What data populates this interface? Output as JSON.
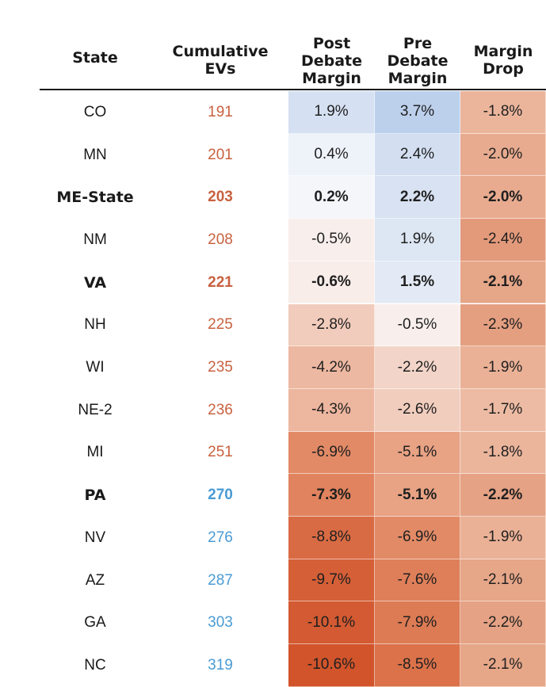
{
  "colors": {
    "ev_red": "#c8613f",
    "ev_blue": "#4a9bd4",
    "text": "#1a1a1a"
  },
  "headers": {
    "state": "State",
    "evs": "Cumulative\nEVs",
    "post": "Post\nDebate\nMargin",
    "pre": "Pre\nDebate\nMargin",
    "drop": "Margin\nDrop"
  },
  "rows": [
    {
      "state": "CO",
      "evs": "191",
      "post": "1.9%",
      "pre": "3.7%",
      "drop": "-1.8%",
      "bold": false,
      "ev_color": "red",
      "post_bg": "#d5e1f2",
      "pre_bg": "#bcd0ec",
      "drop_bg": "#ebb59c"
    },
    {
      "state": "MN",
      "evs": "201",
      "post": "0.4%",
      "pre": "2.4%",
      "drop": "-2.0%",
      "bold": false,
      "ev_color": "red",
      "post_bg": "#eef2f9",
      "pre_bg": "#d3dff1",
      "drop_bg": "#e8ab8f"
    },
    {
      "state": "ME-State",
      "evs": "203",
      "post": "0.2%",
      "pre": "2.2%",
      "drop": "-2.0%",
      "bold": true,
      "ev_color": "red",
      "post_bg": "#f4f6fa",
      "pre_bg": "#d8e2f2",
      "drop_bg": "#e8ab8f"
    },
    {
      "state": "NM",
      "evs": "208",
      "post": "-0.5%",
      "pre": "1.9%",
      "drop": "-2.4%",
      "bold": false,
      "ev_color": "red",
      "post_bg": "#f8efec",
      "pre_bg": "#dde6f3",
      "drop_bg": "#e39a7b"
    },
    {
      "state": "VA",
      "evs": "221",
      "post": "-0.6%",
      "pre": "1.5%",
      "drop": "-2.1%",
      "bold": true,
      "ev_color": "red",
      "post_bg": "#f8ede9",
      "pre_bg": "#e3eaf5",
      "drop_bg": "#e6a688"
    },
    {
      "state": "NH",
      "evs": "225",
      "post": "-2.8%",
      "pre": "-0.5%",
      "drop": "-2.3%",
      "bold": false,
      "ev_color": "red",
      "post_bg": "#f1cbbb",
      "pre_bg": "#f8efec",
      "drop_bg": "#e49f80"
    },
    {
      "state": "WI",
      "evs": "235",
      "post": "-4.2%",
      "pre": "-2.2%",
      "drop": "-1.9%",
      "bold": false,
      "ev_color": "red",
      "post_bg": "#edb8a1",
      "pre_bg": "#f2d5c8",
      "drop_bg": "#eab196"
    },
    {
      "state": "NE-2",
      "evs": "236",
      "post": "-4.3%",
      "pre": "-2.6%",
      "drop": "-1.7%",
      "bold": false,
      "ev_color": "red",
      "post_bg": "#edb69f",
      "pre_bg": "#f1cdbe",
      "drop_bg": "#edbba3"
    },
    {
      "state": "MI",
      "evs": "251",
      "post": "-6.9%",
      "pre": "-5.1%",
      "drop": "-1.8%",
      "bold": false,
      "ev_color": "red",
      "post_bg": "#e28a66",
      "pre_bg": "#e8a284",
      "drop_bg": "#ebb59c"
    },
    {
      "state": "PA",
      "evs": "270",
      "post": "-7.3%",
      "pre": "-5.1%",
      "drop": "-2.2%",
      "bold": true,
      "ev_color": "blue",
      "post_bg": "#e0835e",
      "pre_bg": "#e8a284",
      "drop_bg": "#e5a284"
    },
    {
      "state": "NV",
      "evs": "276",
      "post": "-8.8%",
      "pre": "-6.9%",
      "drop": "-1.9%",
      "bold": false,
      "ev_color": "blue",
      "post_bg": "#d96b44",
      "pre_bg": "#e28a66",
      "drop_bg": "#eab196"
    },
    {
      "state": "AZ",
      "evs": "287",
      "post": "-9.7%",
      "pre": "-7.6%",
      "drop": "-2.1%",
      "bold": false,
      "ev_color": "blue",
      "post_bg": "#d55f37",
      "pre_bg": "#df7f59",
      "drop_bg": "#e6a688"
    },
    {
      "state": "GA",
      "evs": "303",
      "post": "-10.1%",
      "pre": "-7.9%",
      "drop": "-2.2%",
      "bold": false,
      "ev_color": "blue",
      "post_bg": "#d35a32",
      "pre_bg": "#dd7b54",
      "drop_bg": "#e5a284"
    },
    {
      "state": "NC",
      "evs": "319",
      "post": "-10.6%",
      "pre": "-8.5%",
      "drop": "-2.1%",
      "bold": false,
      "ev_color": "blue",
      "post_bg": "#d1542b",
      "pre_bg": "#db724a",
      "drop_bg": "#e6a688"
    }
  ]
}
